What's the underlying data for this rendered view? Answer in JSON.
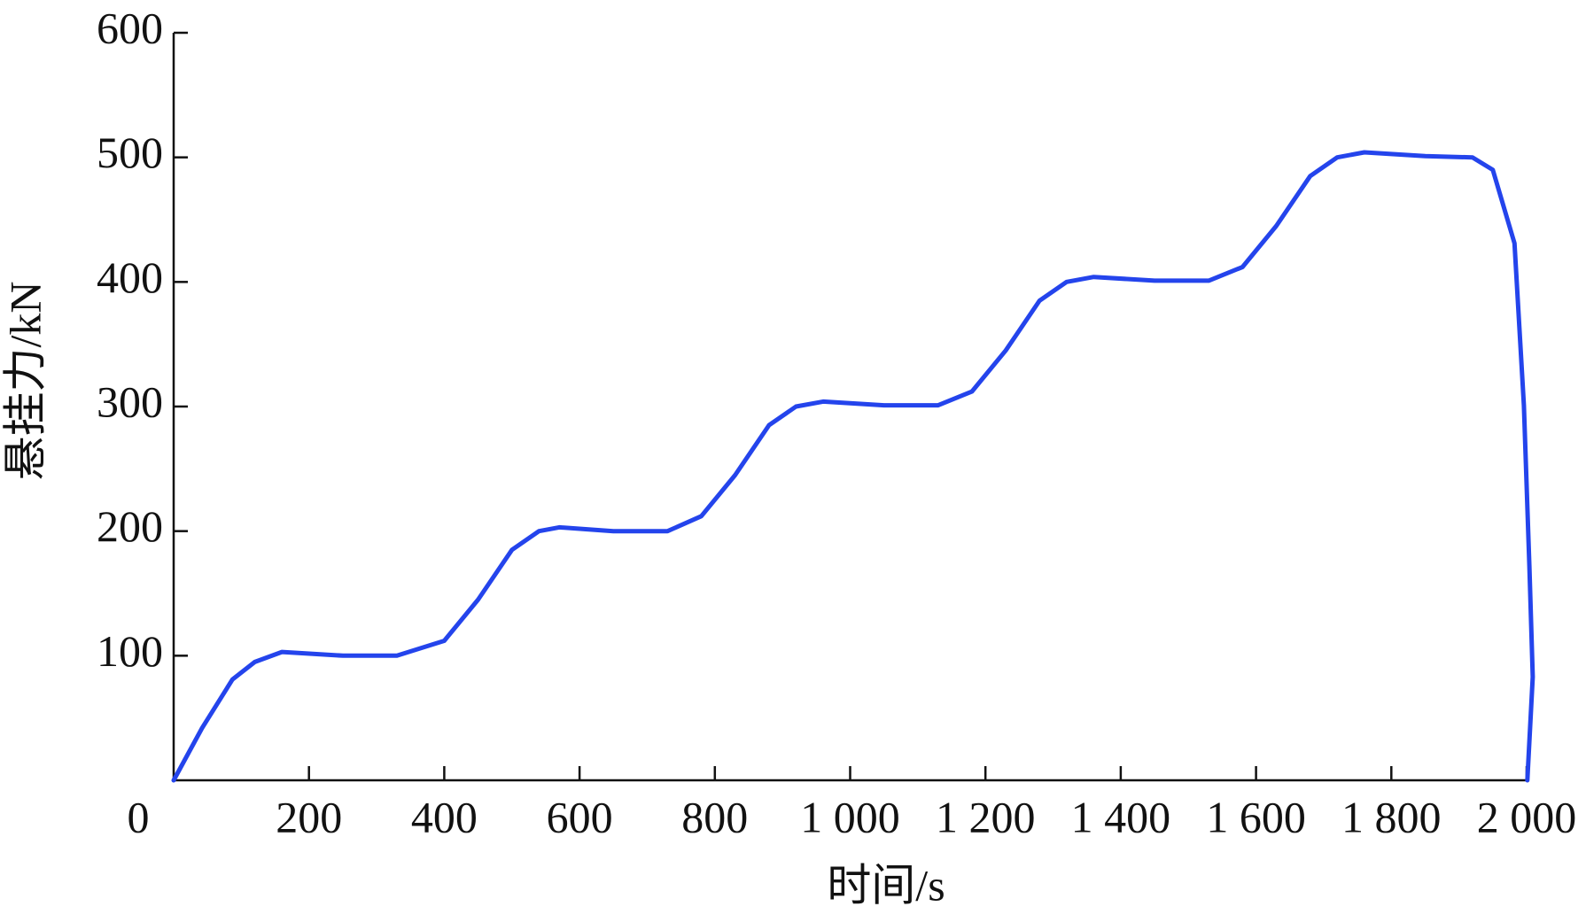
{
  "chart_data": {
    "type": "line",
    "x_label": "时间/s",
    "y_label": "悬挂力/kN",
    "x": [
      0,
      42,
      87,
      120,
      160,
      250,
      330,
      400,
      450,
      500,
      540,
      570,
      650,
      730,
      780,
      830,
      880,
      920,
      960,
      1050,
      1130,
      1180,
      1230,
      1280,
      1320,
      1360,
      1450,
      1530,
      1580,
      1630,
      1680,
      1720,
      1760,
      1850,
      1920,
      1950,
      1982,
      1996,
      2004,
      2009,
      2001
    ],
    "values": [
      0,
      42,
      81,
      95,
      103,
      100,
      100,
      112,
      145,
      185,
      200,
      203,
      200,
      200,
      212,
      245,
      285,
      300,
      304,
      301,
      301,
      312,
      345,
      385,
      400,
      404,
      401,
      401,
      412,
      445,
      485,
      500,
      504,
      501,
      500,
      490,
      431,
      301,
      172,
      83,
      0
    ],
    "color": "#2444ec",
    "xlim": [
      0,
      2000
    ],
    "ylim": [
      0,
      600
    ],
    "xticks": [
      0,
      200,
      400,
      600,
      800,
      {
        "value": 1000,
        "label": "1 000"
      },
      {
        "value": 1200,
        "label": "1 200"
      },
      {
        "value": 1400,
        "label": "1 400"
      },
      {
        "value": 1600,
        "label": "1 600"
      },
      {
        "value": 1800,
        "label": "1 800"
      },
      {
        "value": 2000,
        "label": "2 000"
      }
    ],
    "yticks": [
      100,
      200,
      300,
      400,
      500,
      600
    ]
  }
}
